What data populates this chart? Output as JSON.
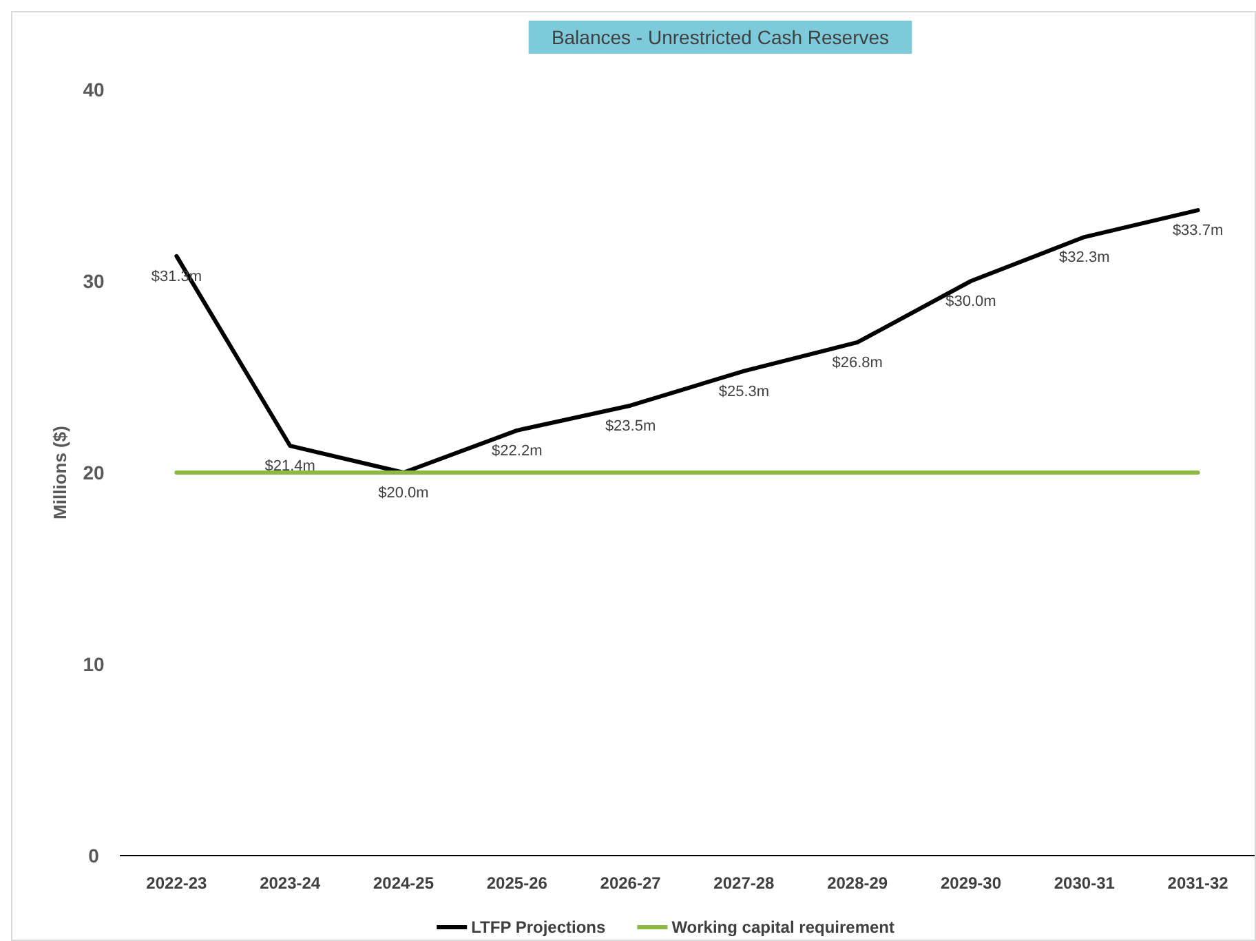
{
  "chart_data": {
    "type": "line",
    "title": "Balances - Unrestricted Cash Reserves",
    "ylabel": "Millions ($)",
    "categories": [
      "2022-23",
      "2023-24",
      "2024-25",
      "2025-26",
      "2026-27",
      "2027-28",
      "2028-29",
      "2029-30",
      "2030-31",
      "2031-32"
    ],
    "series": [
      {
        "name": "LTFP Projections",
        "color": "#000000",
        "values": [
          31.3,
          21.4,
          20.0,
          22.2,
          23.5,
          25.3,
          26.8,
          30.0,
          32.3,
          33.7
        ],
        "value_labels": [
          "$31.3m",
          "$21.4m",
          "$20.0m",
          "$22.2m",
          "$23.5m",
          "$25.3m",
          "$26.8m",
          "$30.0m",
          "$32.3m",
          "$33.7m"
        ]
      },
      {
        "name": "Working capital requirement",
        "color": "#8db843",
        "values": [
          20,
          20,
          20,
          20,
          20,
          20,
          20,
          20,
          20,
          20
        ]
      }
    ],
    "ylim": [
      0,
      40
    ],
    "yticks": [
      0,
      10,
      20,
      30,
      40
    ],
    "grid": false,
    "legend": "bottom",
    "marker": "none",
    "line_style": "solid"
  }
}
